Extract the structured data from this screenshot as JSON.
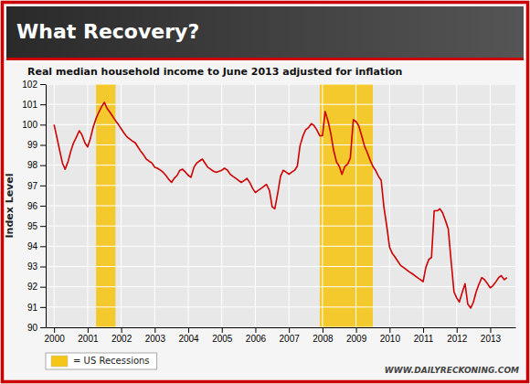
{
  "chart_data": {
    "type": "line",
    "title": "What Recovery?",
    "subtitle": "Real median household income to June 2013 adjusted for inflation",
    "ylabel": "Index Level",
    "annotation": "WWW.DAILYRECKONING.COM",
    "x": [
      2000.0,
      2000.08,
      2000.17,
      2000.25,
      2000.33,
      2000.42,
      2000.5,
      2000.58,
      2000.67,
      2000.75,
      2000.83,
      2000.92,
      2001.0,
      2001.08,
      2001.17,
      2001.25,
      2001.33,
      2001.42,
      2001.5,
      2001.58,
      2001.67,
      2001.75,
      2001.83,
      2001.92,
      2002.0,
      2002.08,
      2002.17,
      2002.25,
      2002.33,
      2002.42,
      2002.5,
      2002.58,
      2002.67,
      2002.75,
      2002.83,
      2002.92,
      2003.0,
      2003.08,
      2003.17,
      2003.25,
      2003.33,
      2003.42,
      2003.5,
      2003.58,
      2003.67,
      2003.75,
      2003.83,
      2003.92,
      2004.0,
      2004.08,
      2004.17,
      2004.25,
      2004.33,
      2004.42,
      2004.5,
      2004.58,
      2004.67,
      2004.75,
      2004.83,
      2004.92,
      2005.0,
      2005.08,
      2005.17,
      2005.25,
      2005.33,
      2005.42,
      2005.5,
      2005.58,
      2005.67,
      2005.75,
      2005.83,
      2005.92,
      2006.0,
      2006.08,
      2006.17,
      2006.25,
      2006.33,
      2006.42,
      2006.5,
      2006.58,
      2006.67,
      2006.75,
      2006.83,
      2006.92,
      2007.0,
      2007.08,
      2007.17,
      2007.25,
      2007.33,
      2007.42,
      2007.5,
      2007.58,
      2007.67,
      2007.75,
      2007.83,
      2007.92,
      2008.0,
      2008.08,
      2008.17,
      2008.25,
      2008.33,
      2008.42,
      2008.5,
      2008.58,
      2008.67,
      2008.75,
      2008.83,
      2008.92,
      2009.0,
      2009.08,
      2009.17,
      2009.25,
      2009.33,
      2009.42,
      2009.5,
      2009.58,
      2009.67,
      2009.75,
      2009.83,
      2009.92,
      2010.0,
      2010.08,
      2010.17,
      2010.25,
      2010.33,
      2010.42,
      2010.5,
      2010.58,
      2010.67,
      2010.75,
      2010.83,
      2010.92,
      2011.0,
      2011.08,
      2011.17,
      2011.25,
      2011.33,
      2011.42,
      2011.5,
      2011.58,
      2011.67,
      2011.75,
      2011.83,
      2011.92,
      2012.0,
      2012.08,
      2012.17,
      2012.25,
      2012.33,
      2012.42,
      2012.5,
      2012.58,
      2012.67,
      2012.75,
      2012.83,
      2012.92,
      2013.0,
      2013.08,
      2013.17,
      2013.25,
      2013.33,
      2013.42,
      2013.5
    ],
    "series": [
      {
        "color": "#cc0000",
        "values": [
          100.0,
          99.4,
          98.7,
          98.1,
          97.8,
          98.2,
          98.7,
          99.1,
          99.4,
          99.7,
          99.5,
          99.1,
          98.9,
          99.3,
          99.9,
          100.3,
          100.6,
          100.9,
          101.1,
          100.8,
          100.6,
          100.4,
          100.2,
          100.0,
          99.8,
          99.6,
          99.4,
          99.3,
          99.2,
          99.1,
          98.9,
          98.7,
          98.5,
          98.3,
          98.2,
          98.1,
          97.9,
          97.85,
          97.75,
          97.65,
          97.5,
          97.3,
          97.15,
          97.35,
          97.5,
          97.75,
          97.8,
          97.65,
          97.5,
          97.4,
          97.9,
          98.1,
          98.2,
          98.3,
          98.1,
          97.9,
          97.8,
          97.7,
          97.65,
          97.7,
          97.75,
          97.85,
          97.75,
          97.55,
          97.45,
          97.35,
          97.25,
          97.15,
          97.25,
          97.35,
          97.15,
          96.85,
          96.65,
          96.75,
          96.85,
          96.95,
          97.05,
          96.75,
          95.95,
          95.85,
          96.65,
          97.45,
          97.75,
          97.65,
          97.55,
          97.65,
          97.75,
          97.95,
          98.95,
          99.45,
          99.75,
          99.85,
          100.05,
          99.95,
          99.75,
          99.45,
          99.45,
          100.65,
          100.15,
          99.55,
          98.75,
          98.15,
          97.95,
          97.55,
          97.95,
          98.05,
          98.35,
          100.25,
          100.15,
          99.95,
          99.45,
          98.95,
          98.65,
          98.25,
          97.95,
          97.75,
          97.45,
          97.25,
          95.95,
          94.95,
          93.95,
          93.65,
          93.45,
          93.25,
          93.05,
          92.95,
          92.85,
          92.75,
          92.65,
          92.55,
          92.45,
          92.35,
          92.25,
          92.95,
          93.35,
          93.45,
          95.75,
          95.75,
          95.85,
          95.65,
          95.25,
          94.85,
          93.35,
          91.75,
          91.45,
          91.25,
          91.75,
          92.15,
          91.15,
          90.95,
          91.25,
          91.75,
          92.15,
          92.45,
          92.35,
          92.15,
          91.95,
          92.05,
          92.25,
          92.45,
          92.55,
          92.35,
          92.45
        ]
      }
    ],
    "bands": {
      "name": "= US Recessions",
      "color": "#f5c518",
      "ranges": [
        {
          "start": 2001.25,
          "end": 2001.83
        },
        {
          "start": 2007.92,
          "end": 2009.5
        }
      ]
    },
    "xlim": [
      1999.75,
      2013.75
    ],
    "xticks": [
      2000,
      2001,
      2002,
      2003,
      2004,
      2005,
      2006,
      2007,
      2008,
      2009,
      2010,
      2011,
      2012,
      2013
    ],
    "ylim": [
      90,
      102
    ],
    "yticks": [
      90,
      91,
      92,
      93,
      94,
      95,
      96,
      97,
      98,
      99,
      100,
      101,
      102
    ],
    "grid": true,
    "legend": "bottom"
  }
}
